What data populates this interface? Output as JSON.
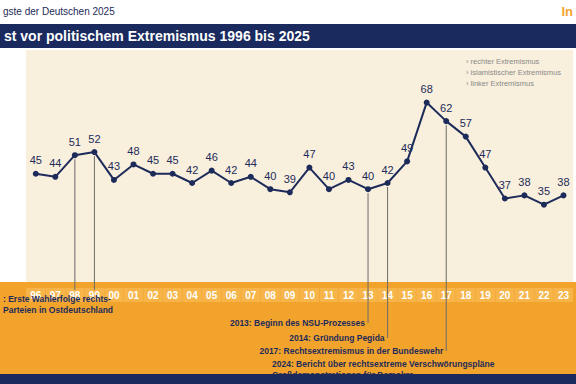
{
  "chart_data": {
    "type": "line",
    "header": "gste der Deutschen 2025",
    "logo": "In",
    "title": "st vor politischem Extremismus 1996 bis 2025",
    "key_items": [
      "› rechter Extremismus",
      "› islamistischer Extremismus",
      "› linker Extremismus"
    ],
    "categories": [
      "96",
      "97",
      "98",
      "99",
      "00",
      "01",
      "02",
      "03",
      "04",
      "05",
      "06",
      "07",
      "08",
      "09",
      "10",
      "11",
      "12",
      "13",
      "14",
      "15",
      "16",
      "17",
      "18",
      "19",
      "20",
      "21",
      "22",
      "23"
    ],
    "values": [
      45,
      44,
      51,
      52,
      43,
      48,
      45,
      45,
      42,
      46,
      42,
      44,
      40,
      39,
      47,
      40,
      43,
      40,
      42,
      49,
      68,
      62,
      57,
      47,
      37,
      38,
      35,
      38
    ],
    "color": "#1d2b5a",
    "marker": "circle",
    "ylim": [
      10,
      85
    ],
    "yticks": [],
    "grid": false,
    "tick_labels": "x",
    "data_labels": true,
    "annotations": [
      {
        "x": [
          "98",
          "99"
        ],
        "text": [
          ": Erste Wahlerfolge rechts-",
          "Parteien in Ostdeutschland"
        ]
      },
      {
        "x": [
          "13"
        ],
        "text": [
          "2013: Beginn des NSU-Prozesses"
        ]
      },
      {
        "x": [
          "14"
        ],
        "text": [
          "2014: Gründung Pegida"
        ]
      },
      {
        "x": [
          "17"
        ],
        "text": [
          "2017: Rechtsextremismus in der Bundeswehr"
        ]
      },
      {
        "x": [],
        "text": [
          "2024: Bericht über rechtsextreme Verschwörungspläne",
          "Großdemonstrationen für Demokra"
        ]
      }
    ]
  }
}
